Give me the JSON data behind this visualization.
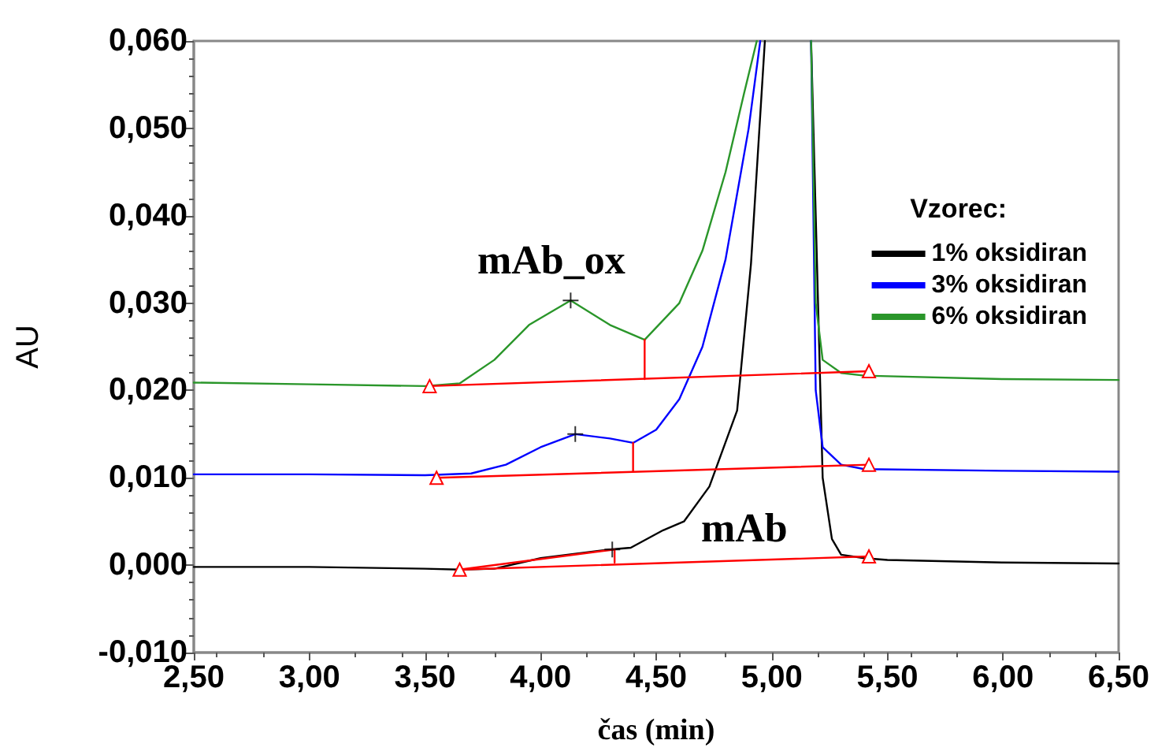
{
  "chart_data": {
    "type": "line",
    "xlabel": "čas (min)",
    "ylabel": "AU",
    "legend_title": "Vzorec:",
    "legend": "top right",
    "grid": false,
    "marker": "none",
    "line_style": "solid",
    "xlim": [
      2.5,
      6.5
    ],
    "xticks": [
      {
        "value": 2.5,
        "label": "2,50"
      },
      {
        "value": 3,
        "label": "3,00"
      },
      {
        "value": 3.5,
        "label": "3,50"
      },
      {
        "value": 4,
        "label": "4,00"
      },
      {
        "value": 4.5,
        "label": "4,50"
      },
      {
        "value": 5,
        "label": "5,00"
      },
      {
        "value": 5.5,
        "label": "5,50"
      },
      {
        "value": 6,
        "label": "6,00"
      },
      {
        "value": 6.5,
        "label": "6,50"
      }
    ],
    "ylim": [
      -0.01,
      0.06
    ],
    "yticks": [
      {
        "value": -0.01,
        "label": "-0,010"
      },
      {
        "value": 0,
        "label": "0,000"
      },
      {
        "value": 0.01,
        "label": "0,010"
      },
      {
        "value": 0.02,
        "label": "0,020"
      },
      {
        "value": 0.03,
        "label": "0,030"
      },
      {
        "value": 0.04,
        "label": "0,040"
      },
      {
        "value": 0.05,
        "label": "0,050"
      },
      {
        "value": 0.06,
        "label": "0,060"
      }
    ],
    "annotations": [
      "mAb_ox",
      "mAb"
    ],
    "series": [
      {
        "name": "1% oksidiran",
        "color": "#000000",
        "x": [
          2.5,
          3.0,
          3.5,
          3.65,
          3.8,
          4.0,
          4.15,
          4.3,
          4.39,
          4.53,
          4.62,
          4.73,
          4.85,
          4.91,
          4.97,
          5.07,
          5.17,
          5.19,
          5.22,
          5.26,
          5.3,
          5.4,
          5.5,
          6.0,
          6.5
        ],
        "values": [
          -0.0002,
          -0.0002,
          -0.0004,
          -0.0005,
          -0.0004,
          0.0008,
          0.0013,
          0.0018,
          0.002,
          0.004,
          0.005,
          0.009,
          0.0177,
          0.0345,
          0.06,
          null,
          0.06,
          0.04,
          0.01,
          0.003,
          0.0012,
          0.0008,
          0.0006,
          0.0003,
          0.0002
        ]
      },
      {
        "name": "3% oksidiran",
        "color": "#0000ff",
        "x": [
          2.5,
          3.0,
          3.5,
          3.7,
          3.85,
          4.0,
          4.15,
          4.3,
          4.4,
          4.5,
          4.6,
          4.7,
          4.8,
          4.9,
          4.95,
          5.05,
          5.17,
          5.19,
          5.22,
          5.3,
          5.4,
          6.0,
          6.5
        ],
        "values": [
          0.0104,
          0.0104,
          0.0103,
          0.0105,
          0.0115,
          0.0135,
          0.015,
          0.0145,
          0.014,
          0.0155,
          0.019,
          0.025,
          0.035,
          0.05,
          0.06,
          null,
          0.06,
          0.02,
          0.0135,
          0.0115,
          0.011,
          0.0108,
          0.0107
        ]
      },
      {
        "name": "6% oksidiran",
        "color": "#2a962a",
        "x": [
          2.5,
          3.0,
          3.5,
          3.65,
          3.8,
          3.95,
          4.13,
          4.3,
          4.45,
          4.6,
          4.7,
          4.8,
          4.88,
          4.935,
          5.05,
          5.17,
          5.19,
          5.22,
          5.3,
          5.4,
          6.0,
          6.5
        ],
        "values": [
          0.0209,
          0.0207,
          0.0205,
          0.0208,
          0.0235,
          0.0275,
          0.0303,
          0.0275,
          0.0258,
          0.03,
          0.036,
          0.045,
          0.054,
          0.06,
          null,
          0.06,
          0.03,
          0.0235,
          0.022,
          0.0217,
          0.0213,
          0.0212
        ]
      },
      {
        "color": "#ff0000",
        "marker": "triangle",
        "x": [
          3.52,
          5.42
        ],
        "values": [
          0.0205,
          0.0222
        ]
      },
      {
        "color": "#ff0000",
        "marker": "triangle",
        "x": [
          3.55,
          5.42
        ],
        "values": [
          0.01,
          0.0115
        ]
      },
      {
        "color": "#ff0000",
        "marker": "triangle",
        "x": [
          3.65,
          5.42
        ],
        "values": [
          -0.0005,
          0.001
        ]
      },
      {
        "color": "#ff0000",
        "x": [
          3.65,
          4.32
        ],
        "values": [
          -0.0005,
          0.0018
        ]
      },
      {
        "color": "#ff0000",
        "x": [
          4.45,
          4.45
        ],
        "values": [
          0.0213,
          0.0258
        ]
      },
      {
        "color": "#ff0000",
        "x": [
          4.4,
          4.4
        ],
        "values": [
          0.0108,
          0.014
        ]
      },
      {
        "color": "#ff0000",
        "x": [
          4.32,
          4.32
        ],
        "values": [
          0.0003,
          0.0018
        ]
      },
      {
        "type": "scatter",
        "color": "#000000",
        "marker": "cross",
        "x": [
          4.13,
          4.15,
          4.31
        ],
        "values": [
          0.0303,
          0.015,
          0.0018
        ]
      }
    ]
  }
}
